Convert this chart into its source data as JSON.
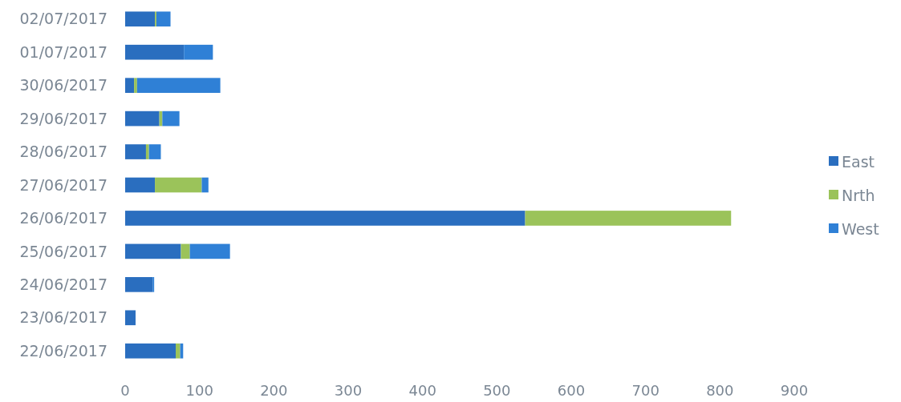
{
  "chart_data": {
    "type": "bar",
    "orientation": "horizontal",
    "stacked": true,
    "categories": [
      "02/07/2017",
      "01/07/2017",
      "30/06/2017",
      "29/06/2017",
      "28/06/2017",
      "27/06/2017",
      "26/06/2017",
      "25/06/2017",
      "24/06/2017",
      "23/06/2017",
      "22/06/2017"
    ],
    "series": [
      {
        "name": "East",
        "color": "#2a6ebf",
        "values": [
          40,
          79,
          12,
          46,
          28,
          40,
          538,
          75,
          37,
          14,
          68
        ]
      },
      {
        "name": "Nrth",
        "color": "#9bc35a",
        "values": [
          2,
          0,
          4,
          4,
          4,
          63,
          277,
          12,
          0,
          0,
          6
        ]
      },
      {
        "name": "West",
        "color": "#2f80d6",
        "values": [
          19,
          39,
          112,
          23,
          16,
          9,
          0,
          54,
          2,
          0,
          4
        ]
      }
    ],
    "xlim": [
      0,
      900
    ],
    "xticks": [
      0,
      100,
      200,
      300,
      400,
      500,
      600,
      700,
      800,
      900
    ],
    "grid": false,
    "legend": "right"
  }
}
